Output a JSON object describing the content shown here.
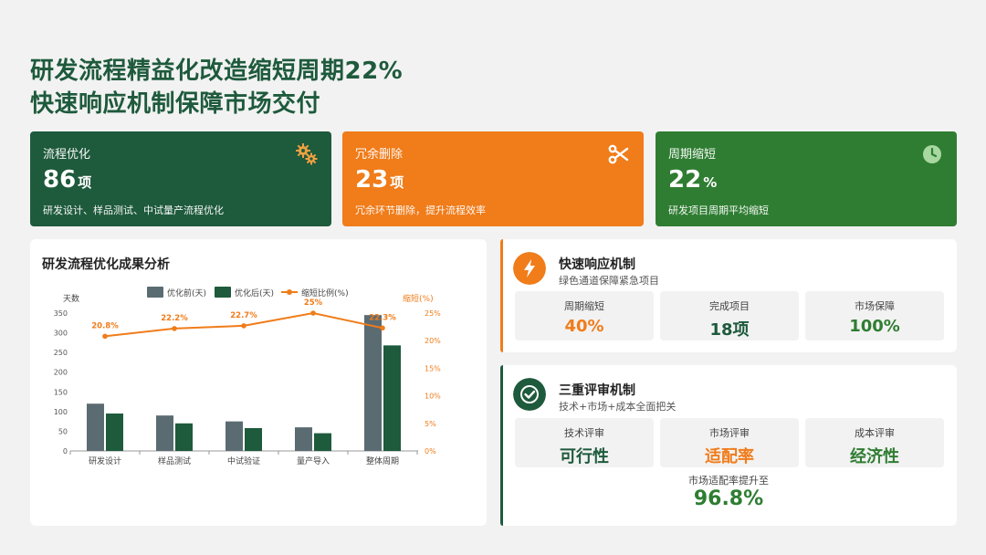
{
  "header": {
    "title_line1": "研发流程精益化改造缩短周期22%",
    "title_line2": "快速响应机制保障市场交付"
  },
  "cards": [
    {
      "label": "流程优化",
      "value": "86",
      "unit": "项",
      "desc": "研发设计、样品测试、中试量产流程优化",
      "icon": "gears-icon",
      "color": "#1e5a3c"
    },
    {
      "label": "冗余删除",
      "value": "23",
      "unit": "项",
      "desc": "冗余环节删除，提升流程效率",
      "icon": "scissors-icon",
      "color": "#f07c1a"
    },
    {
      "label": "周期缩短",
      "value": "22",
      "unit": "%",
      "desc": "研发项目周期平均缩短",
      "icon": "clock-icon",
      "color": "#2f7d32"
    }
  ],
  "chart_panel": {
    "title": "研发流程优化成果分析"
  },
  "chart_data": {
    "type": "bar",
    "categories": [
      "研发设计",
      "样品测试",
      "中试验证",
      "量产导入",
      "整体周期"
    ],
    "series": [
      {
        "name": "优化前(天)",
        "type": "bar",
        "axis": "left",
        "color": "#5b6b72",
        "values": [
          120,
          90,
          75,
          60,
          345
        ]
      },
      {
        "name": "优化后(天)",
        "type": "bar",
        "axis": "left",
        "color": "#1e5a3c",
        "values": [
          95,
          70,
          58,
          45,
          268
        ]
      },
      {
        "name": "缩短比例(%)",
        "type": "line",
        "axis": "right",
        "color": "#f07c1a",
        "values": [
          20.8,
          22.2,
          22.7,
          25,
          22.3
        ]
      }
    ],
    "data_labels": [
      "20.8%",
      "22.2%",
      "22.7%",
      "25%",
      "22.3%"
    ],
    "ylabel_left": "天数",
    "ylabel_right": "缩短(%)",
    "ylim_left": [
      0,
      350
    ],
    "ylim_right": [
      0,
      25
    ],
    "yticks_left": [
      "0",
      "50",
      "100",
      "150",
      "200",
      "250",
      "300",
      "350"
    ],
    "yticks_right": [
      "0%",
      "5%",
      "10%",
      "15%",
      "20%",
      "25%"
    ],
    "legend_position": "top",
    "grid": false
  },
  "mechanisms": [
    {
      "title": "快速响应机制",
      "subtitle": "绿色通道保障紧急项目",
      "icon": "lightning-icon",
      "icon_color": "#f07c1a",
      "stats": [
        {
          "label": "周期缩短",
          "value": "40%",
          "color": "#f07c1a"
        },
        {
          "label": "完成项目",
          "value": "18项",
          "color": "#1e5a3c"
        },
        {
          "label": "市场保障",
          "value": "100%",
          "color": "#2f7d32"
        }
      ]
    },
    {
      "title": "三重评审机制",
      "subtitle": "技术+市场+成本全面把关",
      "icon": "check-icon",
      "icon_color": "#1e5a3c",
      "stats": [
        {
          "label": "技术评审",
          "value": "可行性",
          "color": "#1e5a3c"
        },
        {
          "label": "市场评审",
          "value": "适配率",
          "color": "#f07c1a"
        },
        {
          "label": "成本评审",
          "value": "经济性",
          "color": "#2f7d32"
        }
      ],
      "rate_label": "市场适配率提升至",
      "rate_value": "96.8%"
    }
  ]
}
